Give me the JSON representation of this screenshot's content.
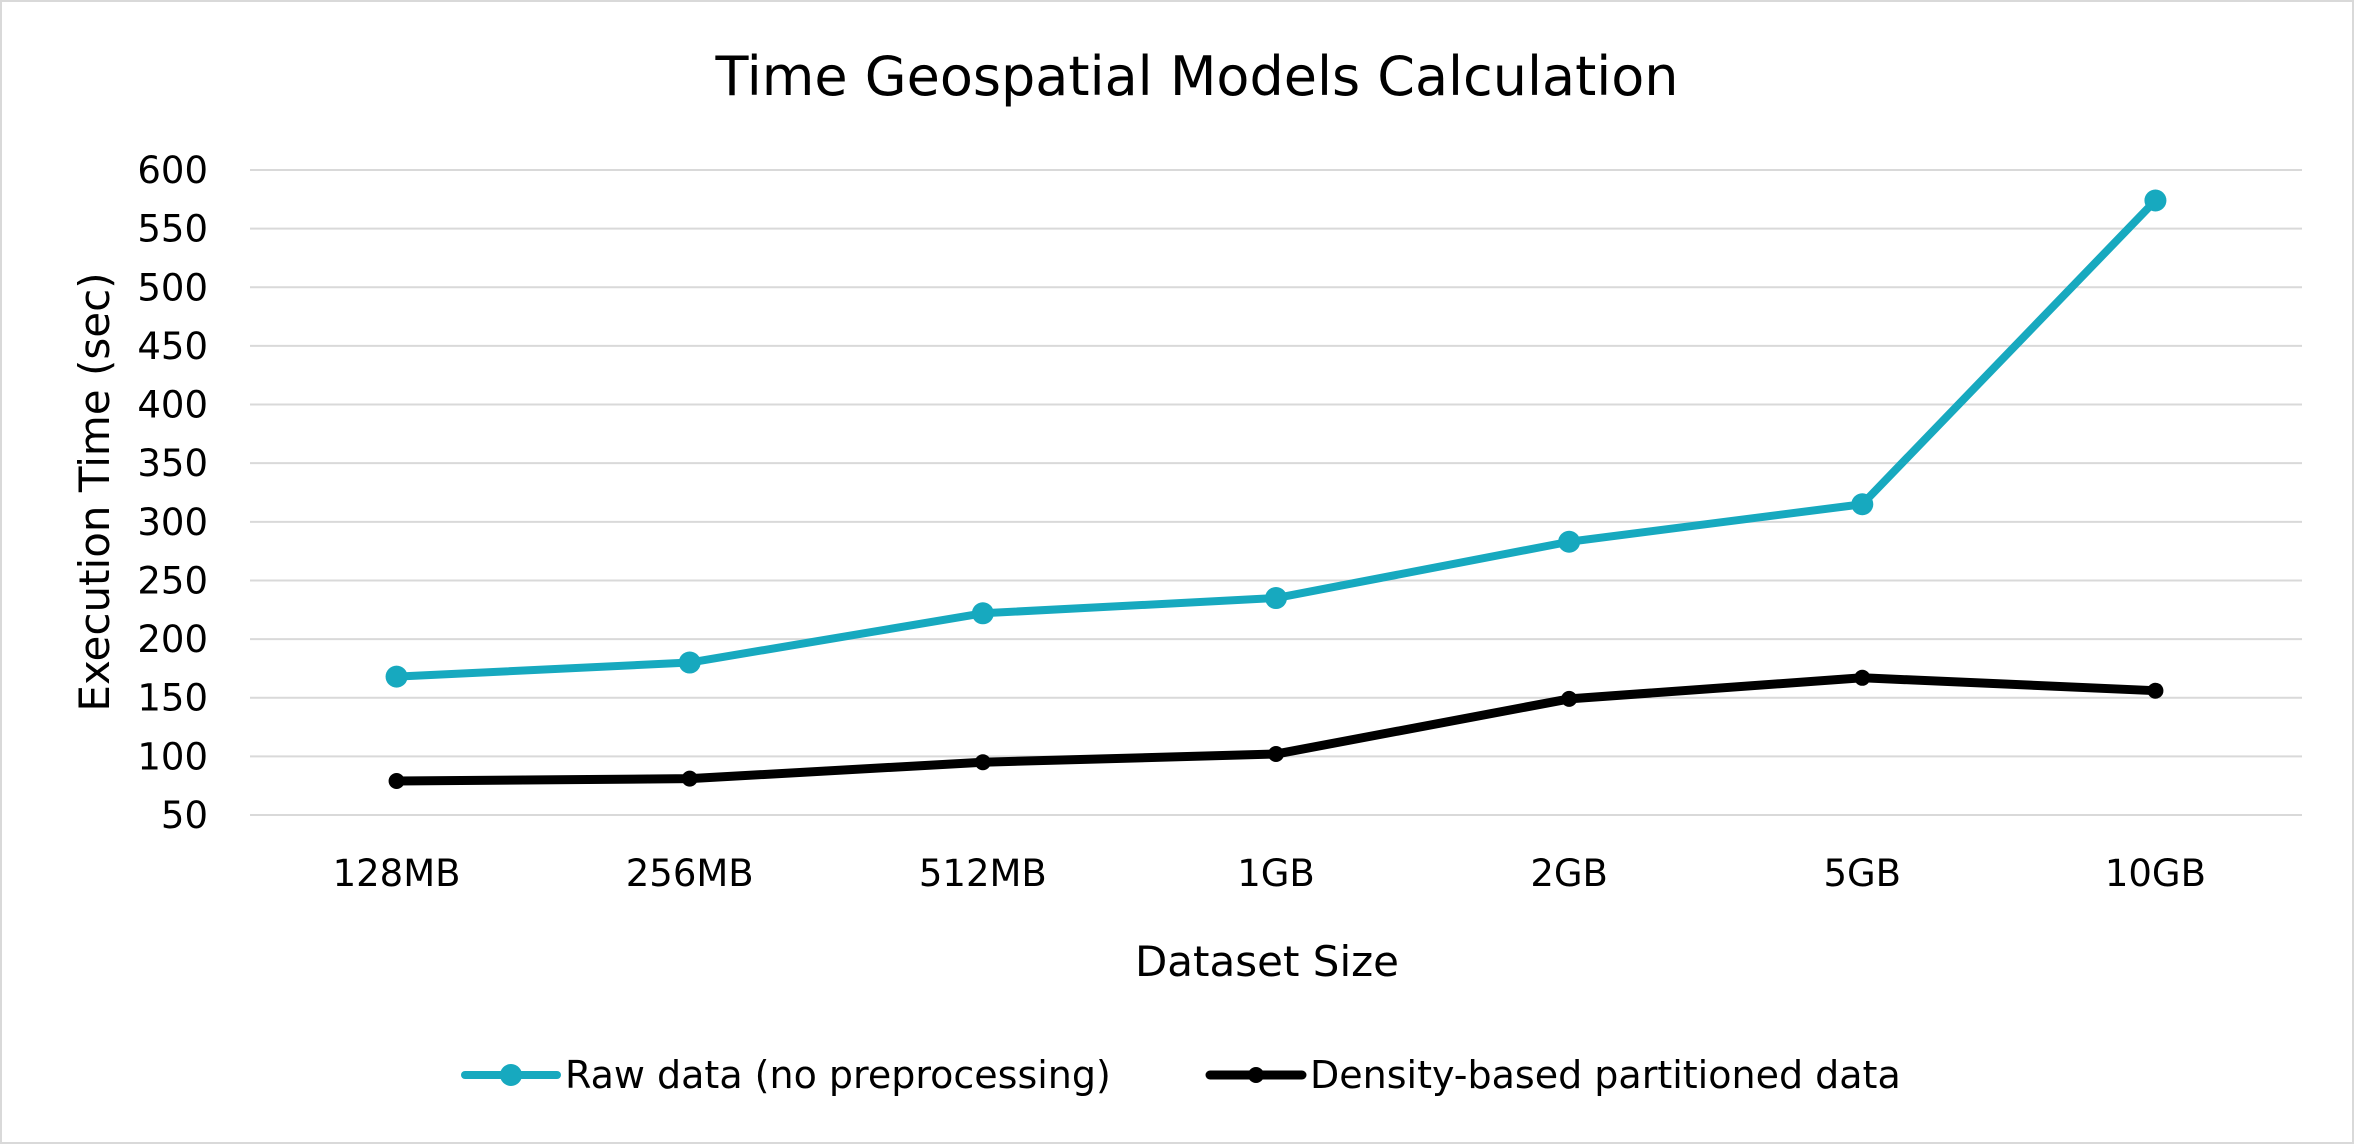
{
  "chart_data": {
    "type": "line",
    "title": "Time Geospatial Models Calculation",
    "xlabel": "Dataset Size",
    "ylabel": "Execution Time (sec)",
    "categories": [
      "128MB",
      "256MB",
      "512MB",
      "1GB",
      "2GB",
      "5GB",
      "10GB"
    ],
    "ylim": [
      50,
      600
    ],
    "yticks": [
      50,
      100,
      150,
      200,
      250,
      300,
      350,
      400,
      450,
      500,
      550,
      600
    ],
    "grid": true,
    "legend_position": "bottom",
    "series": [
      {
        "name": "Raw data (no preprocessing)",
        "color": "#17a9bf",
        "marker": "large-circle",
        "values": [
          168,
          180,
          222,
          235,
          283,
          315,
          574
        ]
      },
      {
        "name": "Density-based partitioned data",
        "color": "#000000",
        "marker": "small-circle",
        "values": [
          79,
          81,
          95,
          102,
          149,
          167,
          156
        ]
      }
    ]
  }
}
